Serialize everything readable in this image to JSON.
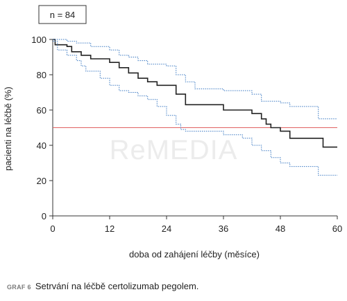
{
  "caption": {
    "label": "GRAF 6",
    "text": "Setrvání na léčbě certolizumab pegolem."
  },
  "watermark": "ReMEDIA",
  "chart_data": {
    "type": "line",
    "annotation": "n = 84",
    "xlabel": "doba od zahájení léčby (měsíce)",
    "ylabel": "pacienti na léčbě (%)",
    "xlim": [
      0,
      60
    ],
    "ylim": [
      0,
      100
    ],
    "xticks": [
      0,
      12,
      24,
      36,
      48,
      60
    ],
    "yticks": [
      0,
      20,
      40,
      60,
      80,
      100
    ],
    "grid": false,
    "reference_line": {
      "y": 50,
      "color": "#e06060"
    },
    "colors": {
      "estimate": "#222222",
      "ci": "#3a78c2"
    },
    "series": [
      {
        "role": "estimate",
        "points": [
          [
            0,
            100
          ],
          [
            0.5,
            97
          ],
          [
            3,
            96
          ],
          [
            4,
            93
          ],
          [
            6,
            91
          ],
          [
            8,
            89
          ],
          [
            12,
            87
          ],
          [
            14,
            84
          ],
          [
            16,
            81
          ],
          [
            18,
            78
          ],
          [
            20,
            76
          ],
          [
            22,
            74
          ],
          [
            26,
            69
          ],
          [
            28,
            63
          ],
          [
            34,
            63
          ],
          [
            36,
            60
          ],
          [
            42,
            58
          ],
          [
            44,
            55
          ],
          [
            45,
            52
          ],
          [
            46,
            50
          ],
          [
            48,
            48
          ],
          [
            50,
            44
          ],
          [
            56,
            44
          ],
          [
            57,
            39
          ],
          [
            60,
            39
          ]
        ]
      },
      {
        "role": "ci-upper",
        "points": [
          [
            0,
            100
          ],
          [
            3,
            99
          ],
          [
            5,
            98
          ],
          [
            8,
            96
          ],
          [
            12,
            94
          ],
          [
            14,
            91
          ],
          [
            16,
            90
          ],
          [
            18,
            88
          ],
          [
            20,
            86
          ],
          [
            24,
            85
          ],
          [
            26,
            80
          ],
          [
            28,
            76
          ],
          [
            30,
            72
          ],
          [
            36,
            71
          ],
          [
            42,
            69
          ],
          [
            44,
            65
          ],
          [
            48,
            64
          ],
          [
            50,
            62
          ],
          [
            56,
            55
          ],
          [
            60,
            55
          ]
        ]
      },
      {
        "role": "ci-lower",
        "points": [
          [
            0,
            99
          ],
          [
            1,
            94
          ],
          [
            3,
            91
          ],
          [
            5,
            88
          ],
          [
            6,
            85
          ],
          [
            7,
            82
          ],
          [
            10,
            78
          ],
          [
            12,
            74
          ],
          [
            14,
            71
          ],
          [
            16,
            70
          ],
          [
            18,
            68
          ],
          [
            20,
            66
          ],
          [
            22,
            62
          ],
          [
            24,
            57
          ],
          [
            26,
            52
          ],
          [
            27,
            49
          ],
          [
            28,
            48
          ],
          [
            34,
            48
          ],
          [
            36,
            46
          ],
          [
            40,
            44
          ],
          [
            42,
            40
          ],
          [
            44,
            37
          ],
          [
            46,
            33
          ],
          [
            48,
            30
          ],
          [
            50,
            28
          ],
          [
            56,
            23
          ],
          [
            60,
            23
          ]
        ]
      }
    ]
  }
}
